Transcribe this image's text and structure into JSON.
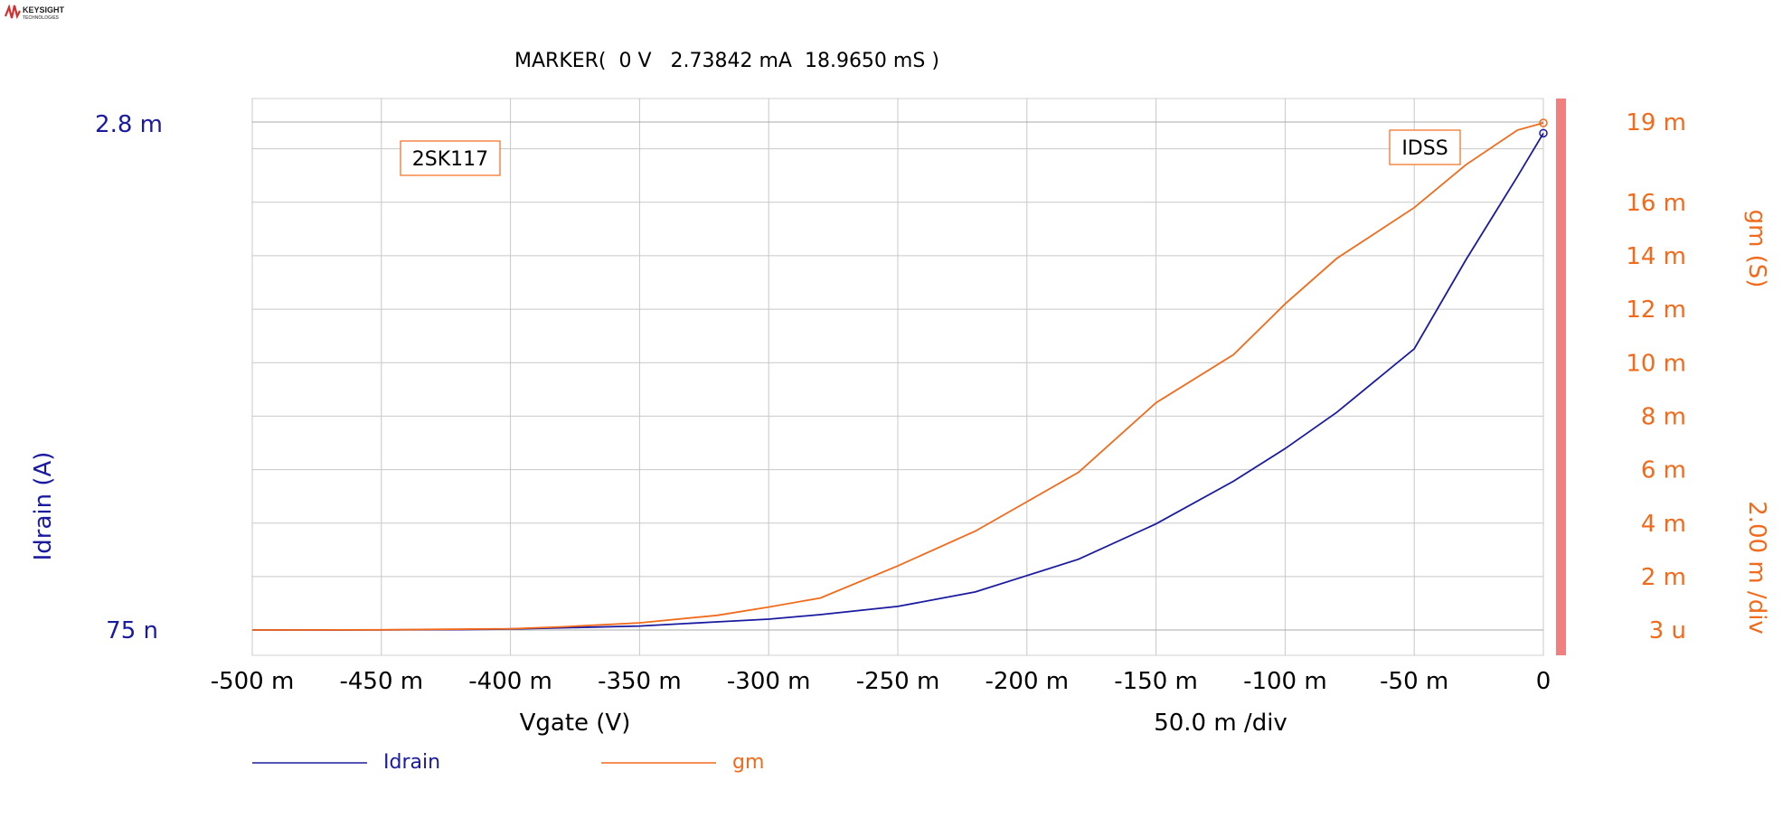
{
  "brand": {
    "name": "KEYSIGHT",
    "sub": "TECHNOLOGIES",
    "color": "#d32f2f"
  },
  "marker": {
    "label": "MARKER(  0 V   2.73842 mA  18.9650 mS )"
  },
  "annotations": {
    "device": "2SK117",
    "idss": "IDSS"
  },
  "colors": {
    "idrain": "#1a1aa0",
    "gm": "#f26a1b",
    "grid": "#c8c8c8",
    "scrollbar": "#f08080",
    "axis_text_left": "#1a1aa0",
    "axis_text_right": "#f26a1b"
  },
  "chart_data": {
    "type": "line",
    "xlabel": "Vgate (V)",
    "xdiv": "50.0 m /div",
    "xlim": [
      -0.5,
      0.0
    ],
    "x_tick_values": [
      -0.5,
      -0.45,
      -0.4,
      -0.35,
      -0.3,
      -0.25,
      -0.2,
      -0.15,
      -0.1,
      -0.05,
      0.0
    ],
    "x_tick_labels": [
      "-500 m",
      "-450 m",
      "-400 m",
      "-350 m",
      "-300 m",
      "-250 m",
      "-200 m",
      "-150 m",
      "-100 m",
      "-50 m",
      "0"
    ],
    "y_left": {
      "label": "Idrain (A)",
      "top_label": "2.8 m",
      "bottom_label": "75 n",
      "lim": [
        7.5e-08,
        0.0028
      ]
    },
    "y_right": {
      "label": "gm (S)",
      "div_label": "2.00 m /div",
      "lim": [
        3e-06,
        0.019
      ],
      "tick_values": [
        0.019,
        0.016,
        0.014,
        0.012,
        0.01,
        0.008,
        0.006,
        0.004,
        0.002,
        3e-06
      ],
      "tick_labels": [
        "19 m",
        "16 m",
        "14 m",
        "12 m",
        "10 m",
        "8 m",
        "6 m",
        "4 m",
        "2 m",
        "3 u"
      ]
    },
    "grid": true,
    "series": [
      {
        "name": "Idrain",
        "axis": "left",
        "x": [
          -0.5,
          -0.45,
          -0.42,
          -0.4,
          -0.38,
          -0.35,
          -0.32,
          -0.3,
          -0.28,
          -0.25,
          -0.22,
          -0.2,
          -0.18,
          -0.15,
          -0.12,
          -0.1,
          -0.08,
          -0.05,
          -0.03,
          -0.01,
          0.0
        ],
        "y": [
          7.5e-08,
          5e-07,
          2e-06,
          6e-06,
          1.2e-05,
          2.2e-05,
          4.5e-05,
          6e-05,
          8.5e-05,
          0.00013,
          0.00021,
          0.0003,
          0.00039,
          0.000585,
          0.00082,
          0.001,
          0.0012,
          0.00155,
          0.00204,
          0.0025,
          0.00273842
        ]
      },
      {
        "name": "gm",
        "axis": "right",
        "x": [
          -0.5,
          -0.45,
          -0.4,
          -0.38,
          -0.35,
          -0.32,
          -0.3,
          -0.28,
          -0.25,
          -0.22,
          -0.2,
          -0.18,
          -0.15,
          -0.12,
          -0.1,
          -0.08,
          -0.05,
          -0.03,
          -0.01,
          0.0
        ],
        "y": [
          3e-06,
          1e-05,
          5e-05,
          0.00012,
          0.00027,
          0.00055,
          0.00086,
          0.0012,
          0.0024,
          0.0037,
          0.0048,
          0.0059,
          0.0085,
          0.0103,
          0.0122,
          0.0139,
          0.0158,
          0.0174,
          0.0187,
          0.018965
        ]
      }
    ],
    "legend": {
      "position": "bottom",
      "entries": [
        "Idrain",
        "gm"
      ]
    }
  }
}
